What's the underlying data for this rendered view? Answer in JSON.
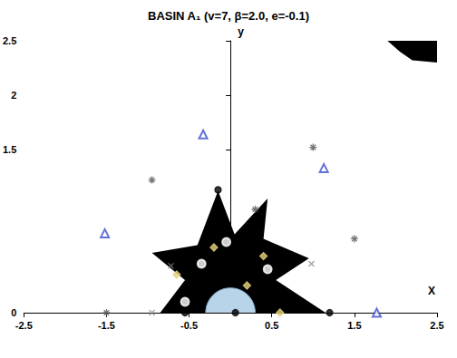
{
  "chart_data": {
    "type": "scatter",
    "title": "BASIN A₁ (v=7, β=2.0, e=-0.1)",
    "x_label": "X",
    "y_label": "y",
    "xlim": [
      -2.5,
      2.5
    ],
    "xticks": [
      -2.5,
      -1.5,
      -0.5,
      0.5,
      1.5,
      2.5
    ],
    "ylim": [
      0,
      2.5
    ],
    "yticks": [
      0,
      1.5,
      2,
      2.5
    ],
    "grid": false,
    "regions": [
      {
        "color": "#000000",
        "points": [
          [
            -0.85,
            0
          ],
          [
            -0.55,
            0.3
          ],
          [
            -0.95,
            0.55
          ],
          [
            -0.4,
            0.62
          ],
          [
            -0.15,
            1.12
          ],
          [
            0.05,
            0.72
          ],
          [
            0.45,
            1.05
          ],
          [
            0.4,
            0.68
          ],
          [
            0.95,
            0.5
          ],
          [
            0.55,
            0.3
          ],
          [
            1.15,
            0
          ]
        ]
      },
      {
        "color": "#000000",
        "points": [
          [
            1.9,
            2.5
          ],
          [
            2.5,
            2.5
          ],
          [
            2.5,
            2.3
          ],
          [
            2.2,
            2.32
          ],
          [
            2.05,
            2.4
          ]
        ]
      }
    ],
    "disk": {
      "center": [
        0,
        0
      ],
      "radius": 0.3,
      "color": "#b8d4e8"
    },
    "series": [
      {
        "marker": "triangle",
        "color": "#3b4fd0",
        "x": [
          -0.33,
          1.13,
          -1.52,
          1.77
        ],
        "y": [
          1.64,
          1.33,
          0.73,
          0.0
        ]
      },
      {
        "marker": "asterisk",
        "color": "#555555",
        "x": [
          -0.95,
          1.0,
          1.5,
          -1.5,
          0.3
        ],
        "y": [
          1.22,
          1.52,
          0.68,
          0.0,
          0.95
        ]
      },
      {
        "marker": "cross",
        "color": "#888888",
        "x": [
          -0.72,
          0.98,
          -0.95
        ],
        "y": [
          0.43,
          0.45,
          0.0
        ]
      },
      {
        "marker": "diamond",
        "color": "#e6d27a",
        "x": [
          -0.65,
          -0.2,
          0.4,
          0.6,
          0.2
        ],
        "y": [
          0.35,
          0.6,
          0.52,
          0.0,
          0.25
        ]
      },
      {
        "marker": "circle",
        "color": "#000000",
        "x": [
          -0.35,
          0.45,
          -0.05,
          -0.55
        ],
        "y": [
          0.45,
          0.4,
          0.65,
          0.1
        ]
      },
      {
        "marker": "dot",
        "color": "#000000",
        "x": [
          -0.15,
          0.06,
          1.2,
          -0.55
        ],
        "y": [
          1.13,
          0.0,
          0.0,
          0.0
        ]
      }
    ]
  }
}
